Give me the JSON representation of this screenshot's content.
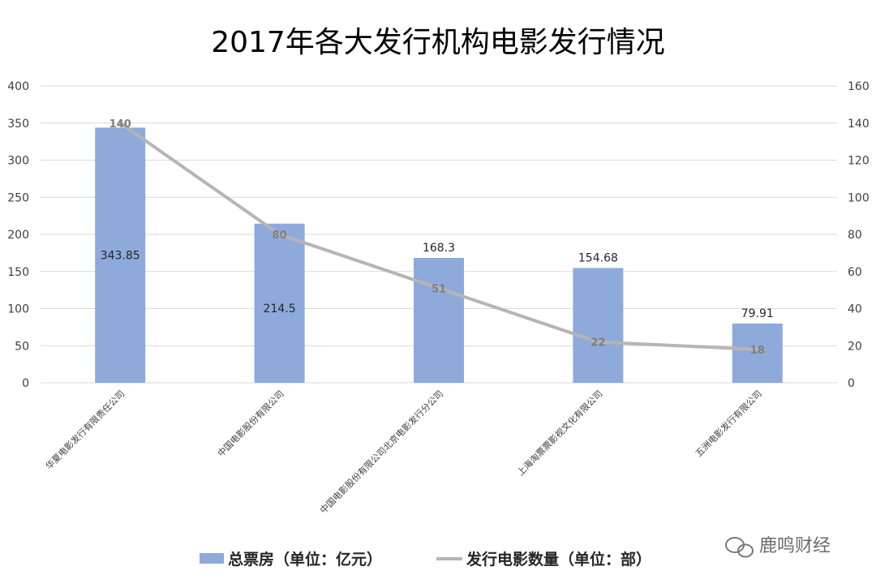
{
  "chart_data": {
    "type": "bar",
    "title": "2017年各大发行机构电影发行情况",
    "categories": [
      "华夏电影发行有限责任公司",
      "中国电影股份有限公司",
      "中国电影股份有限公司北京电影发行分公司",
      "上海淘票票影视文化有限公司",
      "五洲电影发行有限公司"
    ],
    "series": [
      {
        "name": "总票房（单位：亿元）",
        "type": "bar",
        "axis": "left",
        "values": [
          343.85,
          214.5,
          168.3,
          154.68,
          79.91
        ],
        "color": "#8eaadb"
      },
      {
        "name": "发行电影数量（单位：部）",
        "type": "line",
        "axis": "right",
        "values": [
          140,
          80,
          51,
          22,
          18
        ],
        "color": "#b7b4b5"
      }
    ],
    "data_labels": {
      "bar": [
        "343.85",
        "214.5",
        "168.3",
        "154.68",
        "79.91"
      ],
      "line": [
        "140",
        "80",
        "51",
        "22",
        "18"
      ]
    },
    "y_left": {
      "min": 0,
      "max": 400,
      "ticks": [
        "0",
        "50",
        "100",
        "150",
        "200",
        "250",
        "300",
        "350",
        "400"
      ]
    },
    "y_right": {
      "min": 0,
      "max": 160,
      "ticks": [
        "0",
        "20",
        "40",
        "60",
        "80",
        "100",
        "120",
        "140",
        "160"
      ]
    },
    "grid": true,
    "legend_position": "bottom"
  },
  "watermark": {
    "text": "鹿鸣财经",
    "icon": "wechat-icon"
  }
}
